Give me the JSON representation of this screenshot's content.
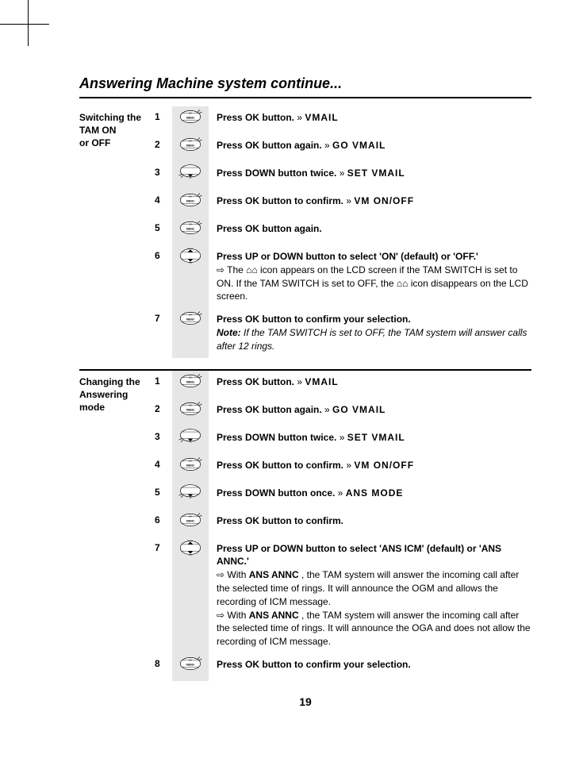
{
  "title": "Answering Machine system continue...",
  "page_number": "19",
  "sections": [
    {
      "label": "Switching the\nTAM ON\nor OFF",
      "steps": [
        {
          "n": "1",
          "icon": "ok",
          "lead": "Press OK button.",
          "tail": "  » VMAIL"
        },
        {
          "n": "2",
          "icon": "ok",
          "lead": "Press OK button again.",
          "tail": "  » GO VMAIL"
        },
        {
          "n": "3",
          "icon": "down",
          "lead": "Press DOWN button twice.",
          "tail": "  » SET VMAIL"
        },
        {
          "n": "4",
          "icon": "ok",
          "lead": "Press OK button to confirm.",
          "tail": "  » VM ON/OFF"
        },
        {
          "n": "5",
          "icon": "ok",
          "lead": "Press OK button again.",
          "tail": ""
        },
        {
          "n": "6",
          "icon": "updown",
          "lead": "Press UP or DOWN button to select 'ON' (default) or 'OFF.'",
          "body": "⇨ The ⌂⌂ icon appears on the LCD screen if the TAM SWITCH is set to ON. If the TAM SWITCH is set to OFF, the ⌂⌂ icon disappears on the LCD screen."
        },
        {
          "n": "7",
          "icon": "ok",
          "lead": "Press OK button to confirm your selection.",
          "note": "If the TAM SWITCH is set to OFF, the TAM system will answer calls after 12 rings."
        }
      ]
    },
    {
      "label": "Changing the\nAnswering\nmode",
      "steps": [
        {
          "n": "1",
          "icon": "ok",
          "lead": "Press OK button.",
          "tail": "  » VMAIL"
        },
        {
          "n": "2",
          "icon": "ok",
          "lead": "Press OK button again.",
          "tail": "  » GO VMAIL"
        },
        {
          "n": "3",
          "icon": "down",
          "lead": "Press DOWN button twice.",
          "tail": "  » SET VMAIL"
        },
        {
          "n": "4",
          "icon": "ok",
          "lead": "Press OK button to confirm.",
          "tail": "  » VM ON/OFF"
        },
        {
          "n": "5",
          "icon": "down",
          "lead": "Press DOWN button once.",
          "tail": "  » ANS MODE"
        },
        {
          "n": "6",
          "icon": "ok",
          "lead": "Press OK button to confirm.",
          "tail": ""
        },
        {
          "n": "7",
          "icon": "updown",
          "lead": "Press UP or DOWN button to select 'ANS ICM' (default) or 'ANS ANNC.'",
          "body_html": "⇨ With <b>ANS ANNC</b> , the TAM system will answer the incoming call after the selected time of rings. It will announce the OGM and allows the recording of ICM message.<br>⇨ With <b>ANS ANNC</b> , the TAM system will answer the incoming call after the selected time of rings. It will announce the OGA and does not allow the recording of ICM message."
        },
        {
          "n": "8",
          "icon": "ok",
          "lead": "Press OK button to confirm your selection.",
          "tail": ""
        }
      ]
    }
  ]
}
